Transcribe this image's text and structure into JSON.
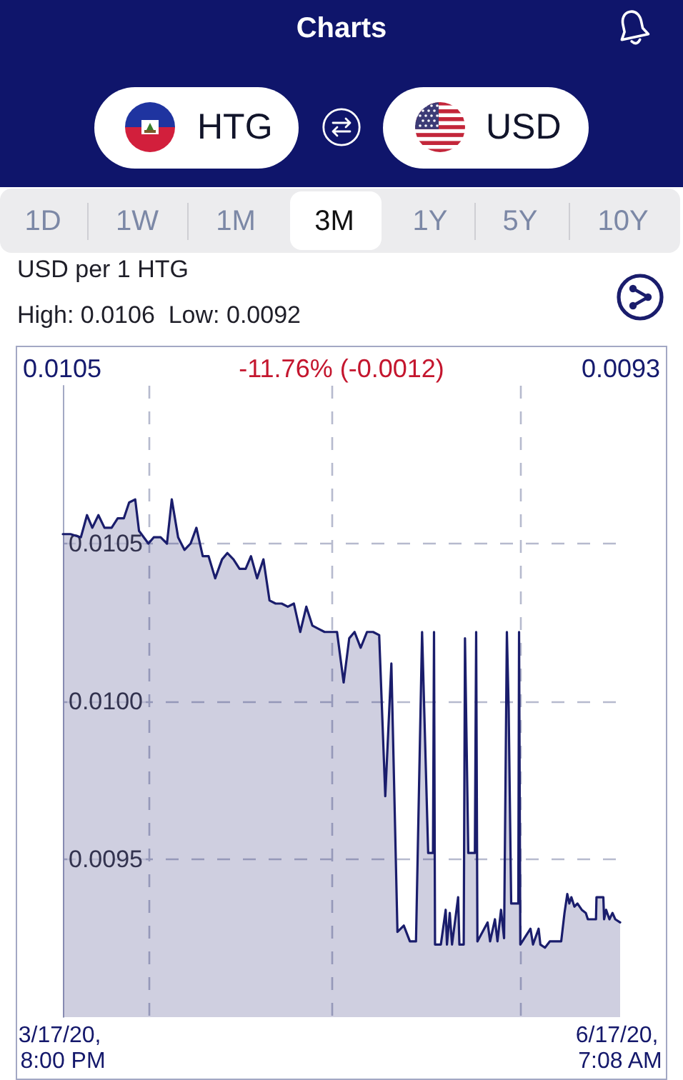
{
  "chart_data": {
    "type": "area",
    "title": "Charts",
    "ylabel": "USD per 1 HTG",
    "annotations": [
      "HTG",
      "USD",
      "1D",
      "1W",
      "1M",
      "3M",
      "1Y",
      "5Y",
      "10Y",
      "High: 0.0106  Low: 0.0092",
      "0.0105",
      "-11.76% (-0.0012)",
      "0.0093"
    ],
    "x": [
      "2020-03-17T20:00",
      "2020-03-19T02:00",
      "2020-03-20T19:00",
      "2020-03-21T19:00",
      "2020-03-22T16:00",
      "2020-03-23T16:00",
      "2020-03-24T16:00",
      "2020-03-25T20:00",
      "2020-03-26T20:00",
      "2020-03-27T20:00",
      "2020-03-28T17:00",
      "2020-03-29T17:00",
      "2020-03-30T08:00",
      "2020-03-31T21:00",
      "2020-04-01T18:00",
      "2020-04-02T21:00",
      "2020-04-03T22:00",
      "2020-04-04T17:00",
      "2020-04-05T18:00",
      "2020-04-06T19:00",
      "2020-04-07T19:00",
      "2020-04-08T18:00",
      "2020-04-09T19:00",
      "2020-04-10T18:00",
      "2020-04-11T20:00",
      "2020-04-12T23:00",
      "2020-04-13T20:00",
      "2020-04-14T20:00",
      "2020-04-15T20:00",
      "2020-04-16T20:00",
      "2020-04-17T17:00",
      "2020-04-18T17:00",
      "2020-04-19T18:00",
      "2020-04-20T18:00",
      "2020-04-21T18:00",
      "2020-04-22T18:00",
      "2020-04-23T18:00",
      "2020-04-24T18:00",
      "2020-04-25T19:00",
      "2020-04-26T19:00",
      "2020-04-27T19:00",
      "2020-04-28T19:00",
      "2020-04-29T19:00",
      "2020-04-30T19:00",
      "2020-05-01T20:00",
      "2020-05-02T22:00",
      "2020-05-03T20:00",
      "2020-05-04T17:00",
      "2020-05-05T17:00",
      "2020-05-06T18:00",
      "2020-05-07T18:00",
      "2020-05-08T18:00",
      "2020-05-09T18:00",
      "2020-05-10T18:00",
      "2020-05-11T18:00",
      "2020-05-12T19:00",
      "2020-05-13T19:00",
      "2020-05-14T19:00",
      "2020-05-15T19:00",
      "2020-05-16T19:00",
      "2020-05-17T14:00",
      "2020-05-17T18:00",
      "2020-05-17T22:00",
      "2020-05-18T21:00",
      "2020-05-19T16:00",
      "2020-05-19T21:00",
      "2020-05-20T08:00",
      "2020-05-20T17:00",
      "2020-05-21T17:00",
      "2020-05-21T22:00",
      "2020-05-22T15:00",
      "2020-05-22T20:00",
      "2020-05-23T09:00",
      "2020-05-24T11:00",
      "2020-05-24T16:00",
      "2020-05-24T21:00",
      "2020-05-26T13:00",
      "2020-05-26T23:00",
      "2020-05-27T18:00",
      "2020-05-28T04:00",
      "2020-05-28T18:00",
      "2020-05-29T06:00",
      "2020-05-29T17:00",
      "2020-05-30T00:00",
      "2020-05-30T10:00",
      "2020-05-31T14:00",
      "2020-05-31T17:00",
      "2020-05-31T22:00",
      "2020-06-02T14:00",
      "2020-06-03T00:00",
      "2020-06-03T22:00",
      "2020-06-04T05:00",
      "2020-06-04T23:00",
      "2020-06-05T18:00",
      "2020-06-07T15:00",
      "2020-06-08T04:00",
      "2020-06-08T15:00",
      "2020-06-08T23:00",
      "2020-06-09T07:00",
      "2020-06-09T19:00",
      "2020-06-10T07:00",
      "2020-06-11T00:00",
      "2020-06-11T16:00",
      "2020-06-12T00:00",
      "2020-06-13T08:00",
      "2020-06-13T10:00",
      "2020-06-14T13:00",
      "2020-06-14T16:00",
      "2020-06-15T00:00",
      "2020-06-15T13:00",
      "2020-06-16T01:00",
      "2020-06-16T12:00",
      "2020-06-17T07:08"
    ],
    "values": [
      0.01053,
      0.01053,
      0.01052,
      0.01059,
      0.01055,
      0.01059,
      0.01055,
      0.01055,
      0.01058,
      0.01058,
      0.01063,
      0.01064,
      0.01054,
      0.0105,
      0.01052,
      0.01052,
      0.0105,
      0.01064,
      0.01052,
      0.01048,
      0.0105,
      0.01055,
      0.01046,
      0.01046,
      0.01039,
      0.01045,
      0.01047,
      0.01045,
      0.01042,
      0.01042,
      0.01046,
      0.01039,
      0.01045,
      0.01032,
      0.01031,
      0.01031,
      0.0103,
      0.01031,
      0.01022,
      0.0103,
      0.01024,
      0.01023,
      0.01022,
      0.01022,
      0.01022,
      0.01006,
      0.0102,
      0.01022,
      0.01017,
      0.01022,
      0.01022,
      0.01021,
      0.0097,
      0.01012,
      0.00927,
      0.00929,
      0.00924,
      0.00924,
      0.01022,
      0.00952,
      0.00952,
      0.01022,
      0.00923,
      0.00923,
      0.00934,
      0.00923,
      0.00933,
      0.00923,
      0.00938,
      0.00923,
      0.00923,
      0.0102,
      0.00952,
      0.00952,
      0.01022,
      0.00924,
      0.0093,
      0.00924,
      0.00931,
      0.00924,
      0.00934,
      0.00925,
      0.01022,
      0.00998,
      0.00936,
      0.00936,
      0.01022,
      0.00923,
      0.00928,
      0.00923,
      0.00928,
      0.00923,
      0.00922,
      0.00924,
      0.00924,
      0.00933,
      0.00939,
      0.00936,
      0.00938,
      0.00935,
      0.00936,
      0.00934,
      0.00933,
      0.00931,
      0.00931,
      0.00938,
      0.00938,
      0.00931,
      0.00934,
      0.00931,
      0.00933,
      0.00931,
      0.0093
    ],
    "color": "#1a1d6c",
    "xlim": [
      "2020-03-17T20:00",
      "2020-06-17T07:08"
    ],
    "xticks": [
      {
        "value": "2020-03-17T20:00",
        "label": "3/17/20, 8:00 PM"
      },
      {
        "value": "2020-04-01",
        "label": null
      },
      {
        "value": "2020-05-01",
        "label": null
      },
      {
        "value": "2020-06-01",
        "label": null
      },
      {
        "value": "2020-06-17T07:08",
        "label": "6/17/20, 7:08 AM"
      }
    ],
    "ylim": [
      0.009,
      0.011
    ],
    "yticks": [
      0.0095,
      {
        "value": 0.01,
        "label": "0.0100"
      },
      0.0105
    ],
    "grid": true
  }
}
